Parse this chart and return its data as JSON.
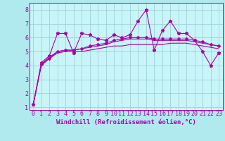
{
  "background_color": "#b0eaee",
  "plot_bg_color": "#c8f5f8",
  "grid_color": "#a0cfd8",
  "line_color": "#aa00aa",
  "xlabel": "Windchill (Refroidissement éolien,°C)",
  "xlim": [
    -0.5,
    23.5
  ],
  "ylim": [
    0.8,
    8.5
  ],
  "yticks": [
    1,
    2,
    3,
    4,
    5,
    6,
    7,
    8
  ],
  "xticks": [
    0,
    1,
    2,
    3,
    4,
    5,
    6,
    7,
    8,
    9,
    10,
    11,
    12,
    13,
    14,
    15,
    16,
    17,
    18,
    19,
    20,
    21,
    22,
    23
  ],
  "series1_x": [
    0,
    1,
    2,
    3,
    4,
    5,
    6,
    7,
    8,
    9,
    10,
    11,
    12,
    13,
    14,
    15,
    16,
    17,
    18,
    19,
    20,
    21,
    22,
    23
  ],
  "series1_y": [
    1.2,
    4.2,
    4.7,
    6.3,
    6.3,
    4.9,
    6.3,
    6.2,
    5.9,
    5.8,
    6.2,
    6.0,
    6.2,
    7.2,
    8.0,
    5.1,
    6.5,
    7.2,
    6.3,
    6.3,
    5.8,
    5.0,
    4.0,
    4.9
  ],
  "series2_x": [
    0,
    1,
    2,
    3,
    4,
    5,
    6,
    7,
    8,
    9,
    10,
    11,
    12,
    13,
    14,
    15,
    16,
    17,
    18,
    19,
    20,
    21,
    22,
    23
  ],
  "series2_y": [
    1.2,
    4.0,
    4.5,
    4.9,
    5.0,
    5.0,
    5.0,
    5.1,
    5.2,
    5.3,
    5.4,
    5.4,
    5.5,
    5.5,
    5.5,
    5.5,
    5.5,
    5.6,
    5.6,
    5.6,
    5.5,
    5.4,
    5.3,
    5.2
  ],
  "series3_x": [
    0,
    1,
    2,
    3,
    4,
    5,
    6,
    7,
    8,
    9,
    10,
    11,
    12,
    13,
    14,
    15,
    16,
    17,
    18,
    19,
    20,
    21,
    22,
    23
  ],
  "series3_y": [
    1.2,
    4.1,
    4.6,
    5.0,
    5.1,
    5.1,
    5.2,
    5.3,
    5.4,
    5.5,
    5.7,
    5.8,
    5.9,
    5.9,
    5.9,
    5.8,
    5.8,
    5.8,
    5.8,
    5.8,
    5.7,
    5.6,
    5.5,
    5.4
  ],
  "series4_x": [
    0,
    1,
    2,
    3,
    4,
    5,
    6,
    7,
    8,
    9,
    10,
    11,
    12,
    13,
    14,
    15,
    16,
    17,
    18,
    19,
    20,
    21,
    22,
    23
  ],
  "series4_y": [
    1.2,
    4.1,
    4.5,
    5.0,
    5.1,
    5.1,
    5.2,
    5.4,
    5.5,
    5.6,
    5.8,
    5.9,
    6.0,
    6.0,
    6.0,
    5.9,
    5.9,
    5.9,
    5.9,
    5.9,
    5.8,
    5.7,
    5.5,
    5.4
  ],
  "xlabel_fontsize": 6.5,
  "tick_fontsize": 6.0,
  "tick_color": "#aa00aa",
  "axis_color": "#aa00aa",
  "label_color": "#aa00aa"
}
